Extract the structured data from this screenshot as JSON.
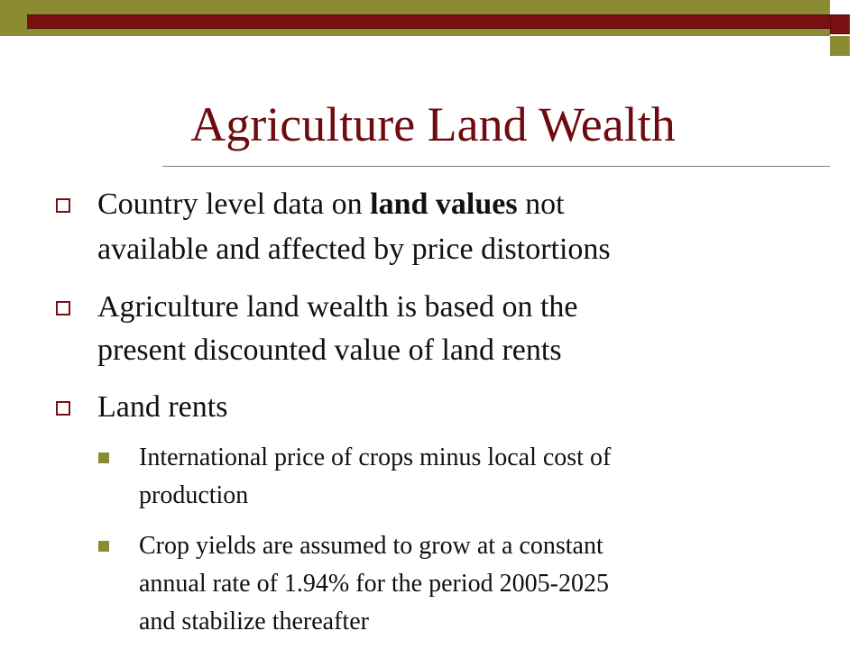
{
  "slide": {
    "title": "Agriculture Land Wealth",
    "bullets": [
      {
        "line1_pre": "Country level data on ",
        "line1_bold": "land values",
        "line1_post": " not",
        "line2": "available and affected by price distortions"
      },
      {
        "line1": "Agriculture land wealth is based on the",
        "line2": "present discounted value of land rents"
      },
      {
        "line1": "Land rents"
      }
    ],
    "sub_bullets": [
      {
        "line1": "International price of crops minus local cost of",
        "line2": "production"
      },
      {
        "line1": "Crop yields are assumed to grow at a constant",
        "line2": "annual rate of 1.94% for the period 2005-2025",
        "line3": "and stabilize thereafter"
      }
    ]
  },
  "colors": {
    "title": "#6e0b0f",
    "banner_olive": "#8b8b33",
    "banner_maroon": "#7a0f12",
    "text": "#111111"
  }
}
